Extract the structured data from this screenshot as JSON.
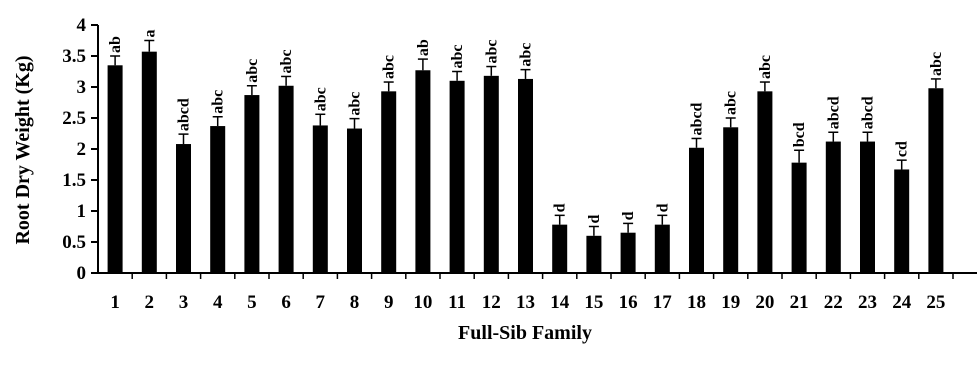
{
  "chart_data": {
    "type": "bar",
    "xlabel": "Full-Sib Family",
    "ylabel": "Root Dry Weight (Kg)",
    "ylim": [
      0,
      4
    ],
    "yticks": [
      "0",
      "0.5",
      "1",
      "1.5",
      "2",
      "2.5",
      "3",
      "3.5",
      "4"
    ],
    "categories": [
      "1",
      "2",
      "3",
      "4",
      "5",
      "6",
      "7",
      "8",
      "9",
      "10",
      "11",
      "12",
      "13",
      "14",
      "15",
      "16",
      "17",
      "18",
      "19",
      "20",
      "21",
      "22",
      "23",
      "24",
      "25"
    ],
    "values": [
      3.35,
      3.57,
      2.08,
      2.37,
      2.87,
      3.02,
      2.38,
      2.33,
      2.93,
      3.27,
      3.1,
      3.18,
      3.13,
      0.78,
      0.6,
      0.65,
      0.78,
      2.02,
      2.35,
      2.93,
      1.78,
      2.12,
      2.12,
      1.67,
      2.98
    ],
    "errors": [
      0.15,
      0.18,
      0.16,
      0.15,
      0.15,
      0.15,
      0.18,
      0.16,
      0.15,
      0.18,
      0.15,
      0.15,
      0.15,
      0.15,
      0.15,
      0.15,
      0.15,
      0.15,
      0.15,
      0.15,
      0.2,
      0.15,
      0.15,
      0.15,
      0.15
    ],
    "significance_letters": [
      "ab",
      "a",
      "abcd",
      "abc",
      "abc",
      "abc",
      "abc",
      "abc",
      "abc",
      "ab",
      "abc",
      "abc",
      "abc",
      "d",
      "d",
      "d",
      "d",
      "abcd",
      "abc",
      "abc",
      "bcd",
      "abcd",
      "abcd",
      "cd",
      "abc"
    ],
    "bar_color": "#000000",
    "grid": false,
    "legend": "none"
  }
}
